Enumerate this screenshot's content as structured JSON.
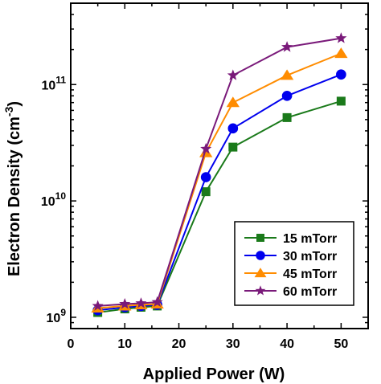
{
  "chart_data": {
    "type": "line",
    "xlabel": "Applied Power (W)",
    "ylabel": {
      "main": "Electron Density (cm",
      "sup": "-3",
      "close": ")"
    },
    "xlim": [
      0,
      55
    ],
    "ylim": [
      800000000,
      500000000000
    ],
    "yscale": "log",
    "x_ticks": [
      0,
      10,
      20,
      30,
      40,
      50
    ],
    "y_ticks": [
      {
        "value": 1000000000,
        "base": "10",
        "exp": "9"
      },
      {
        "value": 10000000000,
        "base": "10",
        "exp": "10"
      },
      {
        "value": 100000000000,
        "base": "10",
        "exp": "11"
      }
    ],
    "legend_position": "lower-right",
    "series": [
      {
        "name": "15 mTorr",
        "color": "#1a7a1a",
        "marker": "square",
        "x": [
          5,
          10,
          13,
          16,
          25,
          30,
          40,
          50
        ],
        "y": [
          1100000000.0,
          1180000000.0,
          1220000000.0,
          1250000000.0,
          12000000000.0,
          29000000000.0,
          52000000000.0,
          72000000000.0
        ]
      },
      {
        "name": "30 mTorr",
        "color": "#0000ee",
        "marker": "circle",
        "x": [
          5,
          10,
          13,
          16,
          25,
          30,
          40,
          50
        ],
        "y": [
          1150000000.0,
          1220000000.0,
          1250000000.0,
          1280000000.0,
          16000000000.0,
          42000000000.0,
          80000000000.0,
          122000000000.0
        ]
      },
      {
        "name": "45 mTorr",
        "color": "#ff8c00",
        "marker": "triangle",
        "x": [
          5,
          10,
          13,
          16,
          25,
          30,
          40,
          50
        ],
        "y": [
          1200000000.0,
          1250000000.0,
          1280000000.0,
          1300000000.0,
          26000000000.0,
          70000000000.0,
          120000000000.0,
          185000000000.0
        ]
      },
      {
        "name": "60 mTorr",
        "color": "#7a1a7a",
        "marker": "star",
        "x": [
          5,
          10,
          13,
          16,
          25,
          30,
          40,
          50
        ],
        "y": [
          1250000000.0,
          1300000000.0,
          1320000000.0,
          1350000000.0,
          28000000000.0,
          120000000000.0,
          210000000000.0,
          250000000000.0
        ]
      }
    ]
  }
}
